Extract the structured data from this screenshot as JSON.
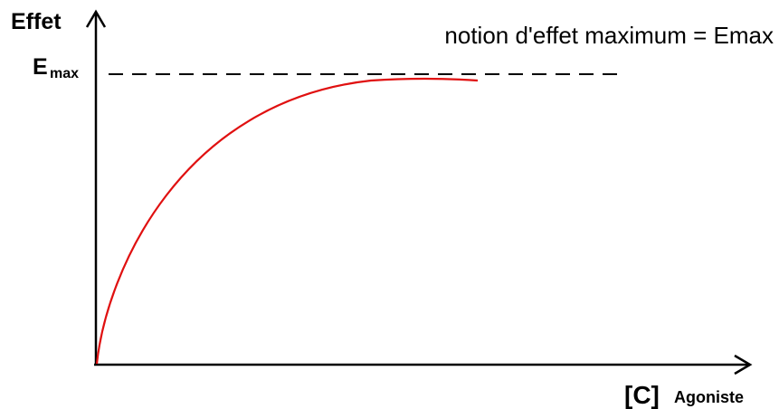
{
  "axis_labels": {
    "y": "Effet",
    "x_main": "[C]",
    "x_sub": "Agoniste"
  },
  "annotation": "notion d'effet maximum = Emax",
  "emax_label": {
    "main": "E",
    "sub": "max"
  }
}
